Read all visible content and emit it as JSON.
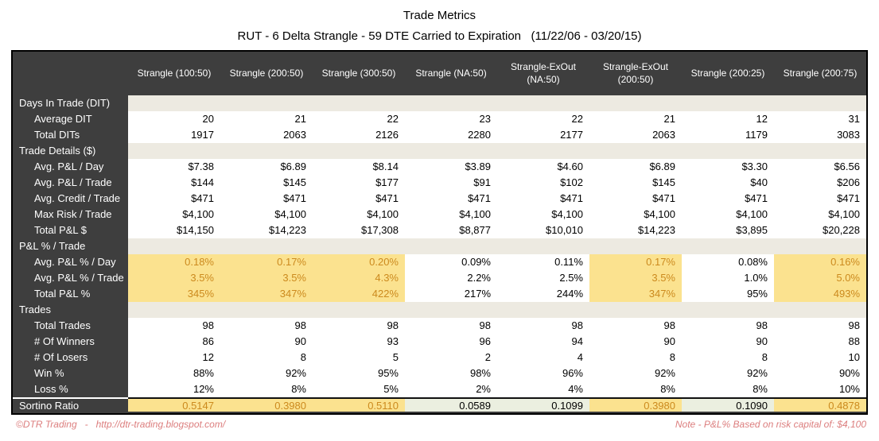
{
  "title": "Trade Metrics",
  "subtitle": "RUT - 6 Delta Strangle - 59 DTE Carried to Expiration   (11/22/06 - 03/20/15)",
  "colors": {
    "header_dark": "#3E3E3E",
    "section_band": "#EDEAE1",
    "highlight_bg": "#FBE28F",
    "highlight_text": "#CC8A1E",
    "sortino_alt_bg": "#EBEFE0",
    "footer_text": "#DC7E7E"
  },
  "table": {
    "columns": [
      "Strangle  (100:50)",
      "Strangle  (200:50)",
      "Strangle  (300:50)",
      "Strangle  (NA:50)",
      "Strangle-ExOut (NA:50)",
      "Strangle-ExOut (200:50)",
      "Strangle  (200:25)",
      "Strangle  (200:75)"
    ],
    "highlight_columns": [
      0,
      1,
      2,
      5,
      7
    ],
    "rows": [
      {
        "type": "section",
        "label": "Days In Trade (DIT)"
      },
      {
        "type": "data",
        "label": "Average DIT",
        "values": [
          "20",
          "21",
          "22",
          "23",
          "22",
          "21",
          "12",
          "31"
        ]
      },
      {
        "type": "data",
        "label": "Total DITs",
        "values": [
          "1917",
          "2063",
          "2126",
          "2280",
          "2177",
          "2063",
          "1179",
          "3083"
        ]
      },
      {
        "type": "section",
        "label": "Trade Details ($)"
      },
      {
        "type": "data",
        "label": "Avg. P&L / Day",
        "values": [
          "$7.38",
          "$6.89",
          "$8.14",
          "$3.89",
          "$4.60",
          "$6.89",
          "$3.30",
          "$6.56"
        ]
      },
      {
        "type": "data",
        "label": "Avg. P&L / Trade",
        "values": [
          "$144",
          "$145",
          "$177",
          "$91",
          "$102",
          "$145",
          "$40",
          "$206"
        ]
      },
      {
        "type": "data",
        "label": "Avg. Credit / Trade",
        "values": [
          "$471",
          "$471",
          "$471",
          "$471",
          "$471",
          "$471",
          "$471",
          "$471"
        ]
      },
      {
        "type": "data",
        "label": "Max Risk / Trade",
        "values": [
          "$4,100",
          "$4,100",
          "$4,100",
          "$4,100",
          "$4,100",
          "$4,100",
          "$4,100",
          "$4,100"
        ]
      },
      {
        "type": "data",
        "label": "Total P&L $",
        "values": [
          "$14,150",
          "$14,223",
          "$17,308",
          "$8,877",
          "$10,010",
          "$14,223",
          "$3,895",
          "$20,228"
        ]
      },
      {
        "type": "section",
        "label": "P&L % / Trade"
      },
      {
        "type": "data",
        "label": "Avg. P&L % / Day",
        "highlight": true,
        "values": [
          "0.18%",
          "0.17%",
          "0.20%",
          "0.09%",
          "0.11%",
          "0.17%",
          "0.08%",
          "0.16%"
        ]
      },
      {
        "type": "data",
        "label": "Avg. P&L % / Trade",
        "highlight": true,
        "values": [
          "3.5%",
          "3.5%",
          "4.3%",
          "2.2%",
          "2.5%",
          "3.5%",
          "1.0%",
          "5.0%"
        ]
      },
      {
        "type": "data",
        "label": "Total P&L %",
        "highlight": true,
        "values": [
          "345%",
          "347%",
          "422%",
          "217%",
          "244%",
          "347%",
          "95%",
          "493%"
        ]
      },
      {
        "type": "section",
        "label": "Trades"
      },
      {
        "type": "data",
        "label": "Total Trades",
        "values": [
          "98",
          "98",
          "98",
          "98",
          "98",
          "98",
          "98",
          "98"
        ]
      },
      {
        "type": "data",
        "label": "# Of Winners",
        "values": [
          "86",
          "90",
          "93",
          "96",
          "94",
          "90",
          "90",
          "88"
        ]
      },
      {
        "type": "data",
        "label": "# Of Losers",
        "values": [
          "12",
          "8",
          "5",
          "2",
          "4",
          "8",
          "8",
          "10"
        ]
      },
      {
        "type": "data",
        "label": "Win %",
        "values": [
          "88%",
          "92%",
          "95%",
          "98%",
          "96%",
          "92%",
          "92%",
          "90%"
        ]
      },
      {
        "type": "data",
        "label": "Loss %",
        "values": [
          "12%",
          "8%",
          "5%",
          "2%",
          "4%",
          "8%",
          "8%",
          "10%"
        ]
      },
      {
        "type": "sortino",
        "label": "Sortino Ratio",
        "highlight": true,
        "values": [
          "0.5147",
          "0.3980",
          "0.5110",
          "0.0589",
          "0.1099",
          "0.3980",
          "0.1090",
          "0.4878"
        ]
      }
    ]
  },
  "footer": {
    "left": "©DTR Trading   -   http://dtr-trading.blogspot.com/",
    "right": "Note - P&L% Based on risk capital of: $4,100"
  }
}
